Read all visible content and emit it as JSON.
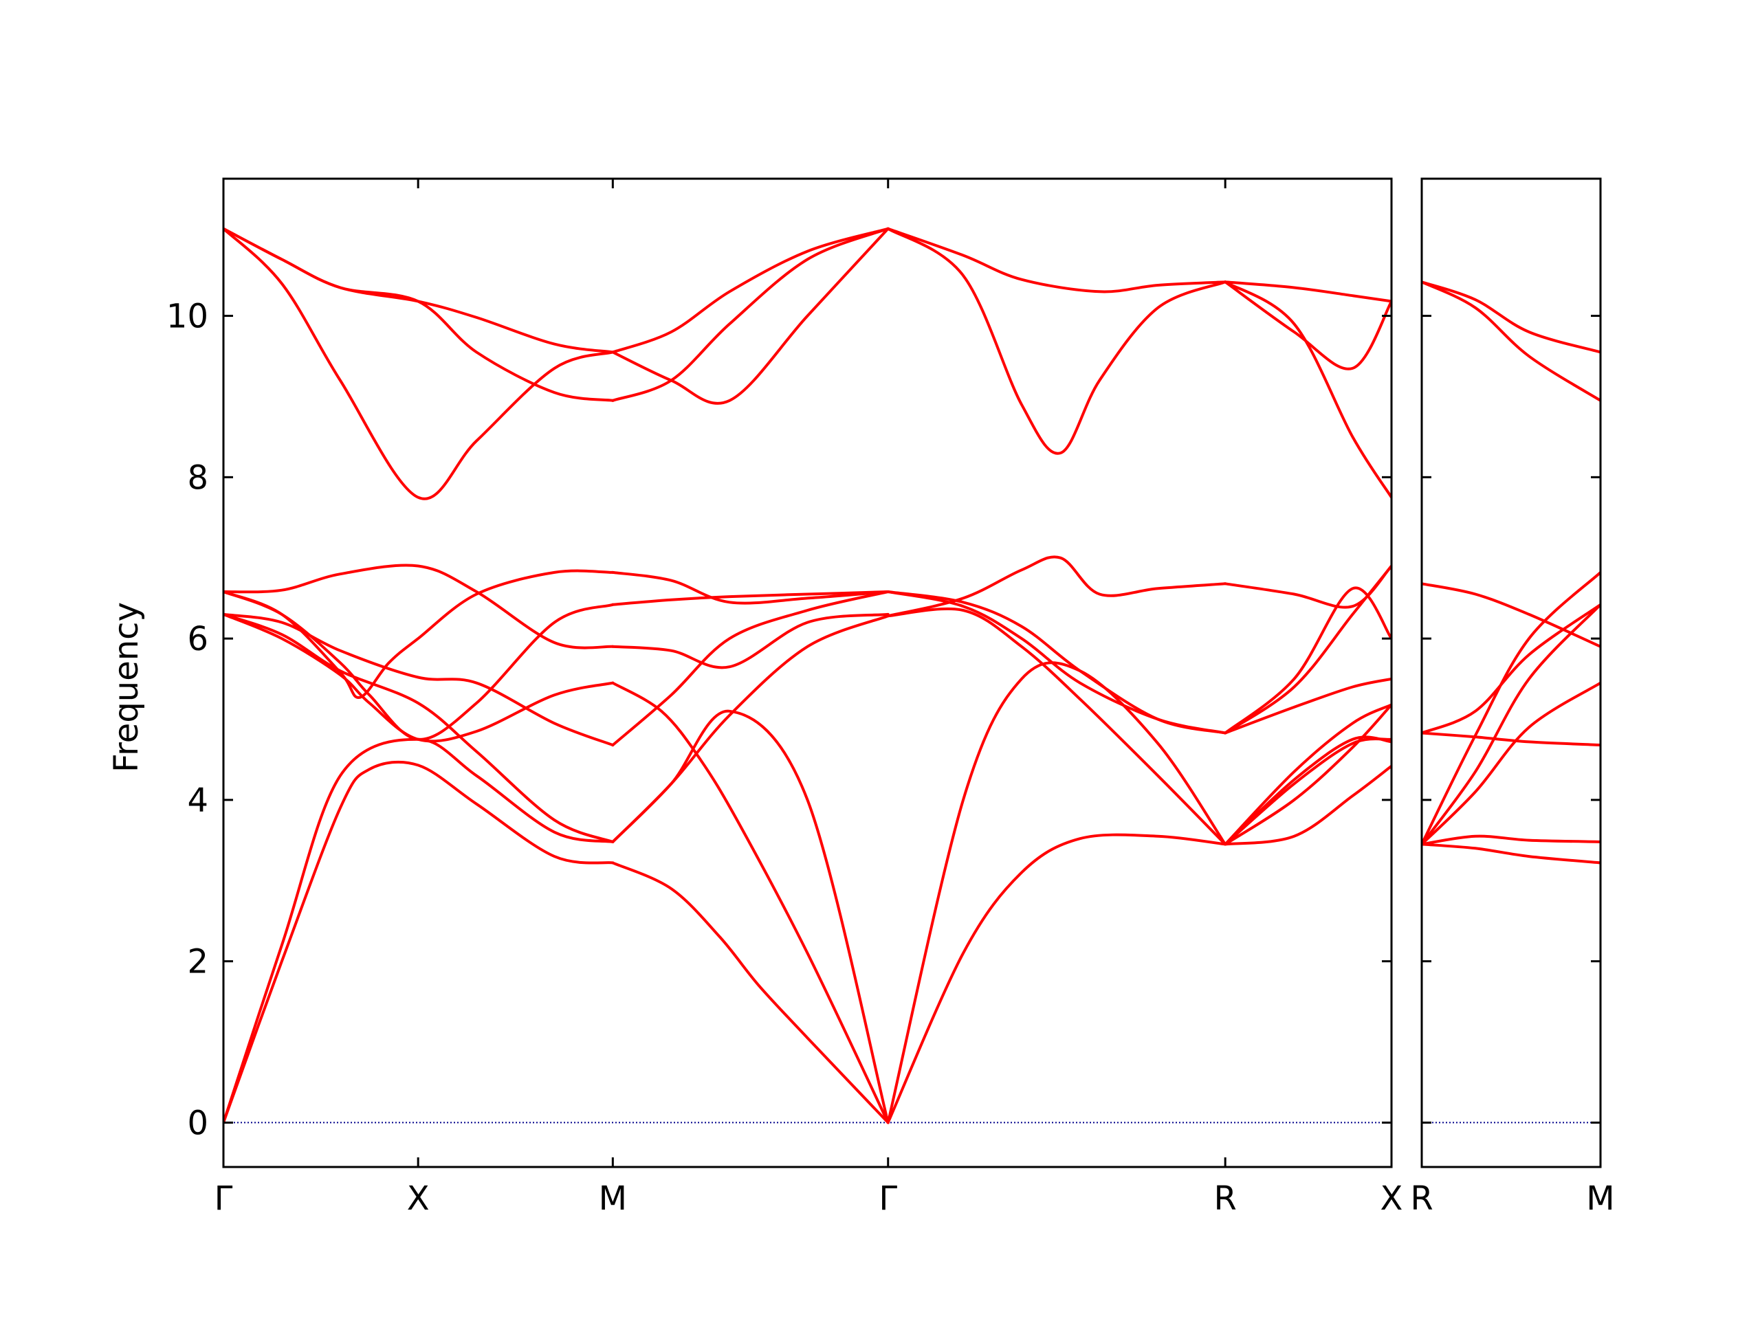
{
  "chart_data": {
    "type": "line",
    "title": "",
    "ylabel": "Frequency",
    "ylim": [
      -0.55,
      11.7
    ],
    "yticks": [
      0,
      2,
      4,
      6,
      8,
      10
    ],
    "grid": false,
    "legend": "none",
    "line_color": "#ff0000",
    "zero_line_color": "#00008b",
    "panels": [
      {
        "xlim": [
          0,
          6
        ],
        "ticks": [
          {
            "x": 0,
            "label": "Γ"
          },
          {
            "x": 1,
            "label": "X"
          },
          {
            "x": 2,
            "label": "M"
          },
          {
            "x": 3.414,
            "label": "Γ"
          },
          {
            "x": 5.146,
            "label": "R"
          },
          {
            "x": 6,
            "label": "X"
          }
        ],
        "series": [
          {
            "x": [
              0,
              0.3,
              0.6,
              1,
              1.3,
              1.7,
              2
            ],
            "y": [
              0,
              2.2,
              4.3,
              4.75,
              4.3,
              3.6,
              3.48
            ]
          },
          {
            "x": [
              0,
              0.3,
              0.6,
              0.75,
              1,
              1.3,
              1.7,
              2
            ],
            "y": [
              0,
              2.0,
              3.9,
              4.38,
              4.43,
              3.95,
              3.3,
              3.22
            ]
          },
          {
            "x": [
              0,
              0.3,
              0.6,
              1,
              1.3,
              1.7,
              2
            ],
            "y": [
              6.3,
              6.05,
              5.6,
              5.2,
              4.6,
              3.75,
              3.48
            ]
          },
          {
            "x": [
              0,
              0.3,
              0.6,
              1,
              1.3,
              1.7,
              2
            ],
            "y": [
              6.3,
              6.2,
              5.85,
              5.52,
              5.45,
              4.95,
              4.68
            ]
          },
          {
            "x": [
              0,
              0.3,
              0.6,
              0.7,
              0.85,
              1,
              1.3,
              1.7,
              2
            ],
            "y": [
              6.58,
              6.3,
              5.58,
              5.27,
              5.7,
              6.0,
              6.55,
              6.82,
              6.82
            ]
          },
          {
            "x": [
              0,
              0.3,
              0.6,
              1,
              1.3,
              1.7,
              2
            ],
            "y": [
              6.58,
              6.6,
              6.8,
              6.9,
              6.58,
              5.95,
              5.9
            ]
          },
          {
            "x": [
              0,
              0.3,
              0.6,
              1,
              1.3,
              1.7,
              2
            ],
            "y": [
              11.08,
              10.7,
              10.35,
              10.18,
              9.98,
              9.65,
              9.55
            ]
          },
          {
            "x": [
              0,
              0.3,
              0.6,
              1,
              1.3,
              1.7,
              2
            ],
            "y": [
              11.08,
              10.4,
              9.2,
              7.75,
              8.45,
              9.35,
              9.55
            ]
          },
          {
            "x": [
              0,
              0.3,
              0.6,
              0.75,
              1,
              1.3,
              1.7,
              2
            ],
            "y": [
              6.3,
              6.0,
              5.55,
              5.2,
              4.75,
              4.85,
              5.3,
              5.45
            ]
          },
          {
            "x": [
              0,
              0.3,
              0.6,
              0.75,
              1,
              1.3,
              1.7,
              2
            ],
            "y": [
              6.58,
              6.3,
              5.7,
              5.3,
              4.75,
              5.2,
              6.2,
              6.42
            ]
          },
          {
            "x": [
              0,
              0.3,
              0.6,
              1,
              1.3,
              1.7,
              2
            ],
            "y": [
              11.08,
              10.7,
              10.35,
              10.18,
              9.55,
              9.05,
              8.95
            ]
          },
          {
            "x": [
              2,
              2.3,
              2.6,
              3.0,
              3.414
            ],
            "y": [
              3.48,
              4.2,
              5.05,
              5.9,
              6.28
            ]
          },
          {
            "x": [
              2,
              2.3,
              2.55,
              2.75,
              3.0,
              3.414
            ],
            "y": [
              3.22,
              2.9,
              2.3,
              1.7,
              1.05,
              0
            ]
          },
          {
            "x": [
              2,
              2.25,
              2.45,
              2.65,
              3.0,
              3.414
            ],
            "y": [
              5.45,
              5.1,
              4.5,
              3.7,
              2.1,
              0
            ]
          },
          {
            "x": [
              2,
              2.3,
              2.6,
              3.0,
              3.414
            ],
            "y": [
              3.48,
              4.2,
              5.1,
              4.0,
              0
            ]
          },
          {
            "x": [
              2,
              2.3,
              2.6,
              3.0,
              3.414
            ],
            "y": [
              4.68,
              5.3,
              6.0,
              6.35,
              6.58
            ]
          },
          {
            "x": [
              2,
              2.3,
              2.6,
              3.0,
              3.414
            ],
            "y": [
              5.9,
              5.85,
              5.65,
              6.2,
              6.3
            ]
          },
          {
            "x": [
              2,
              2.3,
              2.6,
              3.0,
              3.414
            ],
            "y": [
              6.42,
              6.48,
              6.52,
              6.55,
              6.58
            ]
          },
          {
            "x": [
              2,
              2.3,
              2.6,
              3.0,
              3.414
            ],
            "y": [
              6.82,
              6.72,
              6.45,
              6.5,
              6.58
            ]
          },
          {
            "x": [
              2,
              2.3,
              2.6,
              3.0,
              3.414
            ],
            "y": [
              9.55,
              9.2,
              8.95,
              10.0,
              11.08
            ]
          },
          {
            "x": [
              2,
              2.3,
              2.6,
              3.0,
              3.414
            ],
            "y": [
              8.95,
              9.2,
              9.9,
              10.7,
              11.08
            ]
          },
          {
            "x": [
              2,
              2.3,
              2.6,
              3.0,
              3.414
            ],
            "y": [
              9.55,
              9.8,
              10.3,
              10.8,
              11.08
            ]
          },
          {
            "x": [
              3.414,
              3.8,
              4.1,
              4.4,
              4.8,
              5.146
            ],
            "y": [
              0,
              4.0,
              5.5,
              5.6,
              4.7,
              3.45
            ]
          },
          {
            "x": [
              3.414,
              3.8,
              4.1,
              4.4,
              4.8,
              5.146
            ],
            "y": [
              0,
              2.1,
              3.1,
              3.52,
              3.55,
              3.45
            ]
          },
          {
            "x": [
              3.414,
              3.8,
              4.1,
              4.4,
              4.8,
              5.146
            ],
            "y": [
              6.28,
              6.35,
              5.9,
              5.25,
              4.3,
              3.45
            ]
          },
          {
            "x": [
              3.414,
              3.8,
              4.1,
              4.4,
              4.8,
              5.146
            ],
            "y": [
              6.58,
              6.4,
              6.0,
              5.45,
              5.0,
              4.83
            ]
          },
          {
            "x": [
              3.414,
              3.8,
              4.1,
              4.4,
              4.8,
              5.146
            ],
            "y": [
              6.58,
              6.45,
              6.15,
              5.6,
              5.0,
              4.83
            ]
          },
          {
            "x": [
              3.414,
              3.8,
              4.1,
              4.3,
              4.5,
              4.8,
              5.146
            ],
            "y": [
              6.28,
              6.5,
              6.85,
              7.0,
              6.55,
              6.62,
              6.68
            ]
          },
          {
            "x": [
              3.414,
              3.8,
              4.1,
              4.3,
              4.5,
              4.8,
              5.146
            ],
            "y": [
              11.08,
              10.5,
              8.9,
              8.3,
              9.2,
              10.1,
              10.42
            ]
          },
          {
            "x": [
              3.414,
              3.8,
              4.1,
              4.5,
              4.8,
              5.146
            ],
            "y": [
              11.08,
              10.75,
              10.45,
              10.3,
              10.38,
              10.42
            ]
          },
          {
            "x": [
              5.146,
              5.5,
              5.8,
              6.0
            ],
            "y": [
              3.45,
              3.55,
              4.05,
              4.42
            ]
          },
          {
            "x": [
              5.146,
              5.5,
              5.8,
              6.0
            ],
            "y": [
              3.45,
              4.25,
              4.75,
              4.72
            ]
          },
          {
            "x": [
              5.146,
              5.5,
              5.8,
              6.0
            ],
            "y": [
              3.45,
              4.2,
              4.7,
              4.75
            ]
          },
          {
            "x": [
              5.146,
              5.5,
              5.8,
              6.0
            ],
            "y": [
              3.45,
              4.0,
              4.65,
              5.18
            ]
          },
          {
            "x": [
              5.146,
              5.5,
              5.8,
              6.0
            ],
            "y": [
              3.45,
              4.35,
              4.95,
              5.18
            ]
          },
          {
            "x": [
              5.146,
              5.5,
              5.8,
              6.0
            ],
            "y": [
              4.83,
              5.15,
              5.4,
              5.5
            ]
          },
          {
            "x": [
              5.146,
              5.5,
              5.8,
              6.0
            ],
            "y": [
              4.83,
              5.4,
              6.3,
              6.9
            ]
          },
          {
            "x": [
              5.146,
              5.5,
              5.8,
              6.0
            ],
            "y": [
              4.83,
              5.5,
              6.62,
              6.0
            ]
          },
          {
            "x": [
              5.146,
              5.5,
              5.8,
              6.0
            ],
            "y": [
              6.68,
              6.55,
              6.4,
              6.9
            ]
          },
          {
            "x": [
              5.146,
              5.5,
              5.8,
              6.0
            ],
            "y": [
              10.42,
              10.35,
              10.25,
              10.18
            ]
          },
          {
            "x": [
              5.146,
              5.5,
              5.8,
              6.0
            ],
            "y": [
              10.42,
              9.8,
              9.35,
              10.18
            ]
          },
          {
            "x": [
              5.146,
              5.5,
              5.8,
              6.0
            ],
            "y": [
              10.42,
              9.9,
              8.5,
              7.75
            ]
          }
        ]
      },
      {
        "xlim": [
          0,
          1
        ],
        "ticks": [
          {
            "x": 0,
            "label": "R"
          },
          {
            "x": 1,
            "label": "M"
          }
        ],
        "series": [
          {
            "x": [
              0,
              0.3,
              0.6,
              1
            ],
            "y": [
              3.45,
              3.55,
              3.5,
              3.48
            ]
          },
          {
            "x": [
              0,
              0.3,
              0.6,
              1
            ],
            "y": [
              3.45,
              3.4,
              3.3,
              3.22
            ]
          },
          {
            "x": [
              0,
              0.3,
              0.6,
              1
            ],
            "y": [
              3.45,
              4.1,
              4.9,
              5.45
            ]
          },
          {
            "x": [
              0,
              0.3,
              0.6,
              1
            ],
            "y": [
              3.45,
              4.35,
              5.5,
              6.42
            ]
          },
          {
            "x": [
              0,
              0.3,
              0.6,
              1
            ],
            "y": [
              3.45,
              4.8,
              6.0,
              6.82
            ]
          },
          {
            "x": [
              0,
              0.3,
              0.6,
              1
            ],
            "y": [
              4.83,
              4.78,
              4.72,
              4.68
            ]
          },
          {
            "x": [
              0,
              0.3,
              0.6,
              1
            ],
            "y": [
              4.83,
              5.1,
              5.8,
              6.42
            ]
          },
          {
            "x": [
              0,
              0.3,
              0.6,
              1
            ],
            "y": [
              6.68,
              6.55,
              6.3,
              5.9
            ]
          },
          {
            "x": [
              0,
              0.3,
              0.6,
              1
            ],
            "y": [
              10.42,
              10.2,
              9.8,
              9.55
            ]
          },
          {
            "x": [
              0,
              0.3,
              0.6,
              1
            ],
            "y": [
              10.42,
              10.1,
              9.5,
              8.95
            ]
          }
        ]
      }
    ]
  }
}
